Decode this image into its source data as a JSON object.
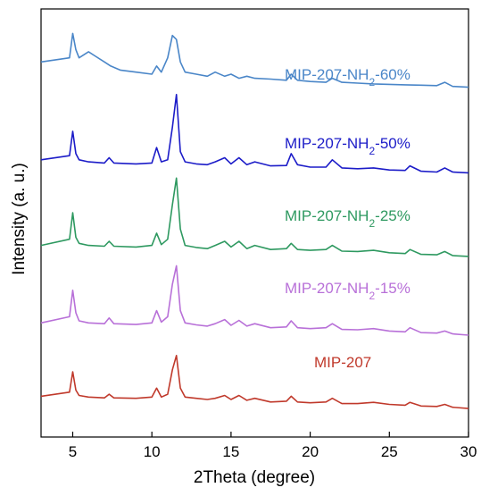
{
  "chart_data": {
    "type": "line",
    "title": "",
    "xlabel": "2Theta (degree)",
    "ylabel": "Intensity (a. u.)",
    "xlim": [
      3,
      30
    ],
    "xticks": [
      5,
      10,
      15,
      20,
      25,
      30
    ],
    "x_tick_labels": [
      "5",
      "10",
      "15",
      "20",
      "25",
      "30"
    ],
    "y_tick_labels_shown": false,
    "grid": false,
    "legend": "inline labels next to curves",
    "series": [
      {
        "name": "MIP-207-NH2-60%",
        "label_main": "MIP-207-NH",
        "label_sub": "2",
        "label_tail": "-60%",
        "color": "#4a86c8",
        "x": [
          3.0,
          4.8,
          5.0,
          5.2,
          5.4,
          6.0,
          6.4,
          7.0,
          7.4,
          8.0,
          9.0,
          10.0,
          10.3,
          10.6,
          11.0,
          11.3,
          11.55,
          11.8,
          12.1,
          12.8,
          13.5,
          14.0,
          14.6,
          15.0,
          15.5,
          16.0,
          16.5,
          17.5,
          18.5,
          18.8,
          19.2,
          20.0,
          21.0,
          21.4,
          22.0,
          23.0,
          24.0,
          25.0,
          26.0,
          27.0,
          28.0,
          28.5,
          29.0,
          30.0
        ],
        "y": [
          9.2,
          9.3,
          9.9,
          9.5,
          9.3,
          9.45,
          9.35,
          9.2,
          9.1,
          9.0,
          8.95,
          8.9,
          9.1,
          8.95,
          9.3,
          9.85,
          9.75,
          9.2,
          8.95,
          8.9,
          8.85,
          8.95,
          8.85,
          8.9,
          8.8,
          8.85,
          8.8,
          8.78,
          8.75,
          8.9,
          8.75,
          8.72,
          8.7,
          8.8,
          8.7,
          8.68,
          8.66,
          8.65,
          8.64,
          8.63,
          8.62,
          8.7,
          8.6,
          8.58
        ]
      },
      {
        "name": "MIP-207-NH2-50%",
        "label_main": "MIP-207-NH",
        "label_sub": "2",
        "label_tail": "-50%",
        "color": "#1c1cc8",
        "x": [
          3.0,
          4.8,
          5.0,
          5.2,
          5.4,
          6.0,
          7.0,
          7.3,
          7.6,
          9.0,
          10.0,
          10.3,
          10.6,
          11.0,
          11.3,
          11.55,
          11.8,
          12.1,
          12.8,
          13.5,
          14.0,
          14.6,
          15.0,
          15.5,
          16.0,
          16.5,
          17.5,
          18.5,
          18.8,
          19.2,
          20.0,
          21.0,
          21.4,
          22.0,
          23.0,
          24.0,
          25.0,
          26.0,
          26.3,
          27.0,
          28.0,
          28.5,
          29.0,
          30.0
        ],
        "y": [
          6.8,
          6.9,
          7.5,
          6.95,
          6.8,
          6.75,
          6.72,
          6.85,
          6.72,
          6.7,
          6.72,
          7.1,
          6.75,
          6.8,
          7.6,
          8.4,
          7.0,
          6.75,
          6.7,
          6.68,
          6.75,
          6.85,
          6.7,
          6.85,
          6.68,
          6.75,
          6.65,
          6.66,
          6.95,
          6.68,
          6.62,
          6.62,
          6.8,
          6.6,
          6.58,
          6.6,
          6.55,
          6.54,
          6.65,
          6.52,
          6.5,
          6.6,
          6.5,
          6.48
        ]
      },
      {
        "name": "MIP-207-NH2-25%",
        "label_main": "MIP-207-NH",
        "label_sub": "2",
        "label_tail": "-25%",
        "color": "#2e9960",
        "x": [
          3.0,
          4.8,
          5.0,
          5.2,
          5.4,
          6.0,
          7.0,
          7.3,
          7.6,
          9.0,
          10.0,
          10.3,
          10.6,
          11.0,
          11.3,
          11.55,
          11.8,
          12.1,
          12.8,
          13.5,
          14.0,
          14.6,
          15.0,
          15.5,
          16.0,
          16.5,
          17.5,
          18.5,
          18.8,
          19.2,
          20.0,
          21.0,
          21.4,
          22.0,
          23.0,
          24.0,
          25.0,
          26.0,
          26.3,
          27.0,
          28.0,
          28.5,
          29.0,
          30.0
        ],
        "y": [
          4.7,
          4.85,
          5.5,
          4.9,
          4.75,
          4.7,
          4.68,
          4.8,
          4.68,
          4.66,
          4.7,
          5.0,
          4.72,
          4.85,
          5.7,
          6.35,
          5.1,
          4.7,
          4.65,
          4.62,
          4.7,
          4.8,
          4.66,
          4.8,
          4.62,
          4.7,
          4.6,
          4.62,
          4.75,
          4.6,
          4.58,
          4.6,
          4.7,
          4.56,
          4.55,
          4.58,
          4.52,
          4.5,
          4.6,
          4.48,
          4.47,
          4.55,
          4.45,
          4.43
        ]
      },
      {
        "name": "MIP-207-NH2-15%",
        "label_main": "MIP-207-NH",
        "label_sub": "2",
        "label_tail": "-15%",
        "color": "#b870d8",
        "x": [
          3.0,
          4.8,
          5.0,
          5.2,
          5.4,
          6.0,
          7.0,
          7.3,
          7.6,
          9.0,
          10.0,
          10.3,
          10.6,
          11.0,
          11.3,
          11.55,
          11.8,
          12.1,
          12.8,
          13.5,
          14.0,
          14.6,
          15.0,
          15.5,
          16.0,
          16.5,
          17.5,
          18.5,
          18.8,
          19.2,
          20.0,
          21.0,
          21.4,
          22.0,
          23.0,
          24.0,
          25.0,
          26.0,
          26.3,
          27.0,
          28.0,
          28.5,
          29.0,
          30.0
        ],
        "y": [
          2.8,
          2.95,
          3.6,
          3.05,
          2.85,
          2.8,
          2.78,
          2.92,
          2.78,
          2.76,
          2.8,
          3.1,
          2.82,
          2.95,
          3.75,
          4.2,
          3.1,
          2.8,
          2.75,
          2.72,
          2.78,
          2.88,
          2.74,
          2.86,
          2.72,
          2.78,
          2.68,
          2.7,
          2.85,
          2.68,
          2.66,
          2.68,
          2.78,
          2.64,
          2.63,
          2.66,
          2.6,
          2.58,
          2.68,
          2.56,
          2.55,
          2.6,
          2.53,
          2.5
        ]
      },
      {
        "name": "MIP-207",
        "label_main": "MIP-207",
        "label_sub": "",
        "label_tail": "",
        "color": "#c0392b",
        "x": [
          3.0,
          4.8,
          5.0,
          5.2,
          5.4,
          6.0,
          7.0,
          7.3,
          7.6,
          9.0,
          10.0,
          10.3,
          10.6,
          11.0,
          11.3,
          11.55,
          11.8,
          12.1,
          12.8,
          13.5,
          14.0,
          14.6,
          15.0,
          15.5,
          16.0,
          16.5,
          17.5,
          18.5,
          18.8,
          19.2,
          20.0,
          21.0,
          21.4,
          22.0,
          23.0,
          24.0,
          25.0,
          26.0,
          26.3,
          27.0,
          28.0,
          28.5,
          29.0,
          30.0
        ],
        "y": [
          1.0,
          1.1,
          1.6,
          1.15,
          1.02,
          0.98,
          0.96,
          1.05,
          0.96,
          0.95,
          0.98,
          1.2,
          0.98,
          1.05,
          1.65,
          2.0,
          1.2,
          0.98,
          0.95,
          0.92,
          0.95,
          1.02,
          0.92,
          1.02,
          0.9,
          0.95,
          0.86,
          0.88,
          1.0,
          0.86,
          0.84,
          0.86,
          0.95,
          0.82,
          0.82,
          0.85,
          0.8,
          0.78,
          0.85,
          0.76,
          0.75,
          0.8,
          0.73,
          0.7
        ]
      }
    ]
  }
}
